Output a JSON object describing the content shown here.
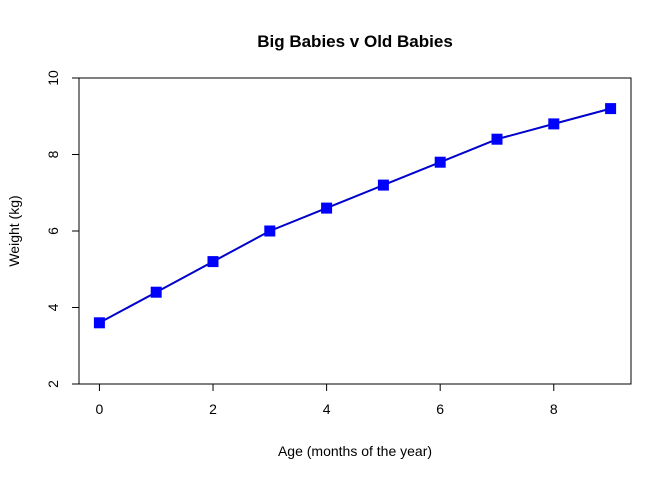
{
  "chart_data": {
    "type": "line",
    "title": "Big Babies v Old Babies",
    "xlabel": "Age (months of the year)",
    "ylabel": "Weight (kg)",
    "x": [
      0,
      1,
      2,
      3,
      4,
      5,
      6,
      7,
      8,
      9
    ],
    "series": [
      {
        "values": [
          3.6,
          4.4,
          5.2,
          6.0,
          6.6,
          7.2,
          7.8,
          8.4,
          8.8,
          9.2
        ]
      }
    ],
    "xlim": [
      -0.36,
      9.36
    ],
    "ylim": [
      2,
      10
    ],
    "x_ticks": [
      0,
      2,
      4,
      6,
      8
    ],
    "y_ticks": [
      2,
      4,
      6,
      8,
      10
    ],
    "marker": "square",
    "line_color": "#0000cc",
    "marker_color": "#0000ff",
    "grid": false,
    "legend": "none"
  }
}
